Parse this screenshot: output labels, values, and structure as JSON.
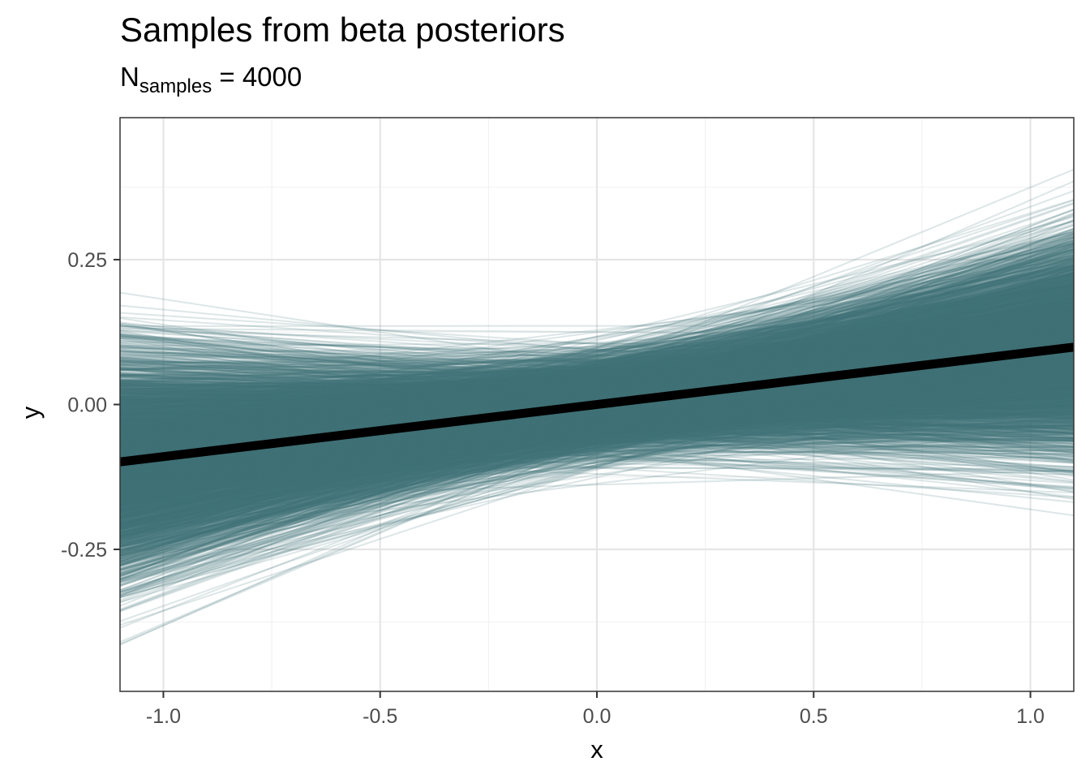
{
  "chart_data": {
    "type": "line",
    "title": "Samples from beta posteriors",
    "subtitle": {
      "base": "N",
      "subscript": "samples",
      "suffix": " = 4000"
    },
    "xlabel": "x",
    "ylabel": "y",
    "xlim": [
      -1.1,
      1.1
    ],
    "ylim": [
      -0.495,
      0.495
    ],
    "x_ticks": [
      -1.0,
      -0.5,
      0.0,
      0.5,
      1.0
    ],
    "x_tick_labels": [
      "-1.0",
      "-0.5",
      "0.0",
      "0.5",
      "1.0"
    ],
    "x_minor_ticks": [
      -0.75,
      -0.25,
      0.25,
      0.75
    ],
    "y_ticks": [
      -0.25,
      0.0,
      0.25
    ],
    "y_tick_labels": [
      "-0.25",
      "0.00",
      "0.25"
    ],
    "y_minor_ticks": [
      -0.375,
      -0.125,
      0.125,
      0.375
    ],
    "grid": true,
    "legend": "none",
    "samples": {
      "count": 4000,
      "intercept_mean": 0.0,
      "intercept_sd": 0.04,
      "slope_mean": 0.09,
      "slope_sd": 0.07,
      "color": "#44757a",
      "opacity": 0.18
    },
    "mean_line": {
      "intercept": 0.0,
      "slope": 0.09,
      "color": "#000000"
    }
  },
  "colors": {
    "background": "#ffffff",
    "grid_major": "#e5e5e5",
    "grid_minor": "#f2f2f2",
    "panel_border": "#333333",
    "tick_label": "#4d4d4d"
  }
}
